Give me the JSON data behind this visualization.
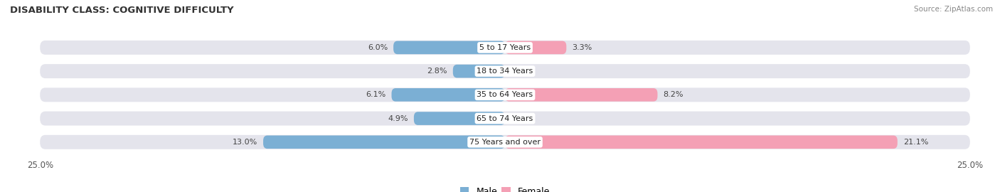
{
  "title": "DISABILITY CLASS: COGNITIVE DIFFICULTY",
  "source": "Source: ZipAtlas.com",
  "categories": [
    "5 to 17 Years",
    "18 to 34 Years",
    "35 to 64 Years",
    "65 to 74 Years",
    "75 Years and over"
  ],
  "male_values": [
    6.0,
    2.8,
    6.1,
    4.9,
    13.0
  ],
  "female_values": [
    3.3,
    0.0,
    8.2,
    0.0,
    21.1
  ],
  "male_color": "#7bafd4",
  "female_color": "#f4a0b5",
  "bar_bg_color": "#e4e4ec",
  "max_val": 25.0,
  "title_fontsize": 9.5,
  "label_fontsize": 8.0,
  "tick_fontsize": 8.5,
  "legend_fontsize": 9,
  "source_fontsize": 7.5
}
